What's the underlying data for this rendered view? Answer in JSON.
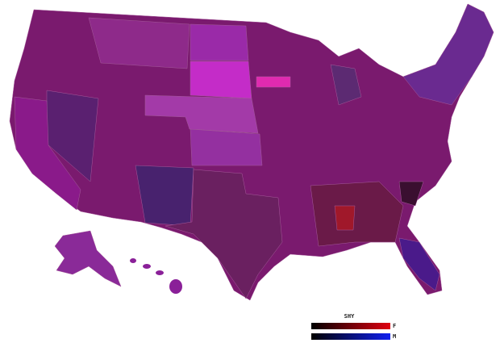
{
  "legend": {
    "title": "SHY",
    "items": [
      "F",
      "M"
    ]
  }
}
